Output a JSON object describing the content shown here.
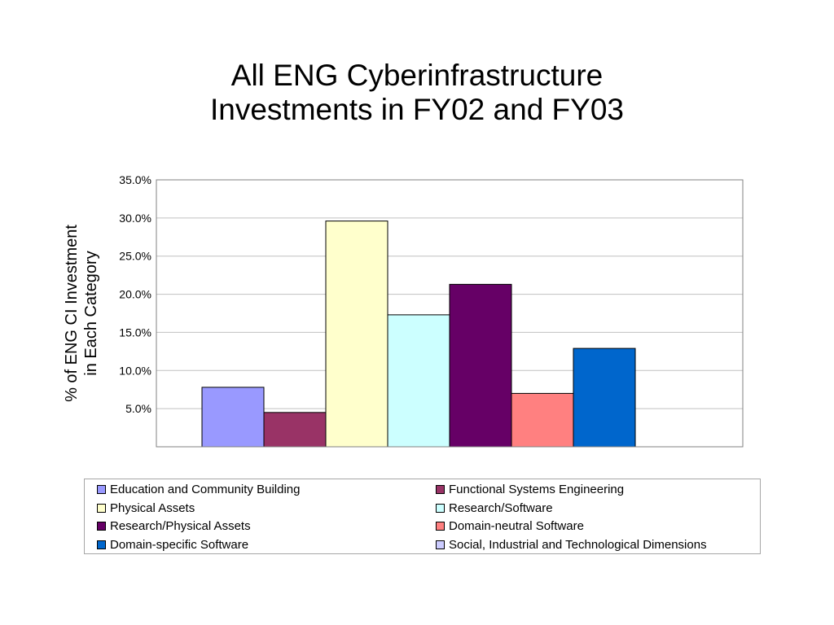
{
  "chart_data": {
    "type": "bar",
    "title": [
      "All ENG Cyberinfrastructure",
      "Investments in FY02 and FY03"
    ],
    "ylabel": [
      "% of ENG CI Investment",
      "in Each Category"
    ],
    "ylim": [
      0,
      35
    ],
    "yticks": [
      "5.0%",
      "10.0%",
      "15.0%",
      "20.0%",
      "25.0%",
      "30.0%",
      "35.0%"
    ],
    "grid": true,
    "legend_position": "bottom",
    "series": [
      {
        "name": "Education and Community Building",
        "value": 7.8,
        "color": "#9999ff"
      },
      {
        "name": "Functional Systems Engineering",
        "value": 4.5,
        "color": "#993366"
      },
      {
        "name": "Physical Assets",
        "value": 29.6,
        "color": "#ffffcc"
      },
      {
        "name": "Research/Software",
        "value": 17.3,
        "color": "#ccffff"
      },
      {
        "name": "Research/Physical Assets",
        "value": 21.3,
        "color": "#660066"
      },
      {
        "name": "Domain-neutral Software",
        "value": 7.0,
        "color": "#ff8080"
      },
      {
        "name": "Domain-specific Software",
        "value": 12.9,
        "color": "#0066cc"
      },
      {
        "name": "Social, Industrial and Technological Dimensions",
        "value": 0,
        "color": "#ccccff"
      }
    ]
  }
}
